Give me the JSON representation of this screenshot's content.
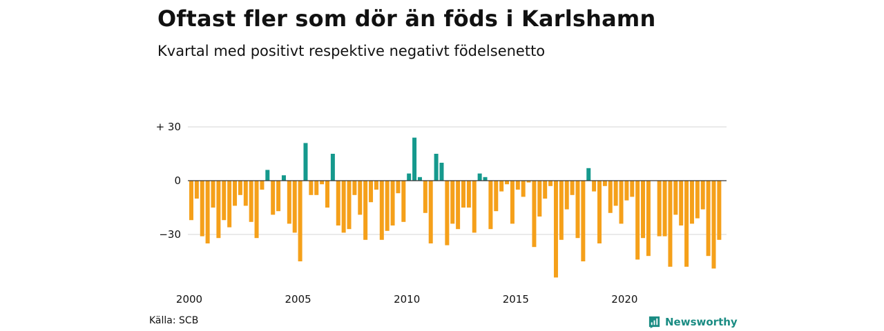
{
  "header": {
    "title": "Oftast fler som dör än föds i Karlshamn",
    "subtitle": "Kvartal med positivt respektive negativt födelsenetto"
  },
  "footer": {
    "source": "Källa: SCB",
    "brand": "Newsworthy"
  },
  "colors": {
    "positive": "#15998d",
    "negative": "#f5a01a",
    "grid": "#d6d6d6",
    "axis": "#333333",
    "brand": "#1a8c83"
  },
  "chart_data": {
    "type": "bar",
    "grid": true,
    "ylim": [
      -55,
      30
    ],
    "yticks": [
      {
        "value": 30,
        "label": "+ 30"
      },
      {
        "value": 0,
        "label": "0"
      },
      {
        "value": -30,
        "label": "−30"
      }
    ],
    "xticks": [
      {
        "year": 2000,
        "label": "2000"
      },
      {
        "year": 2005,
        "label": "2005"
      },
      {
        "year": 2010,
        "label": "2010"
      },
      {
        "year": 2015,
        "label": "2015"
      },
      {
        "year": 2020,
        "label": "2020"
      }
    ],
    "start_year": 2000,
    "start_quarter": 1,
    "values": [
      -22,
      -10,
      -31,
      -35,
      -15,
      -32,
      -22,
      -26,
      -14,
      -8,
      -14,
      -23,
      -32,
      -5,
      6,
      -19,
      -17,
      3,
      -24,
      -29,
      -45,
      21,
      -8,
      -8,
      -2,
      -15,
      15,
      -25,
      -29,
      -27,
      -8,
      -19,
      -33,
      -12,
      -5,
      -33,
      -28,
      -25,
      -7,
      -23,
      4,
      24,
      2,
      -18,
      -35,
      15,
      10,
      -36,
      -24,
      -27,
      -15,
      -15,
      -29,
      4,
      2,
      -27,
      -17,
      -6,
      -2,
      -24,
      -5,
      -9,
      -1,
      -37,
      -20,
      -10,
      -3,
      -54,
      -33,
      -16,
      -8,
      -32,
      -45,
      7,
      -6,
      -35,
      -3,
      -18,
      -14,
      -24,
      -11,
      -9,
      -44,
      -32,
      -42,
      0,
      -31,
      -31,
      -48,
      -19,
      -25,
      -48,
      -24,
      -21,
      -16,
      -42,
      -49,
      -33
    ]
  }
}
